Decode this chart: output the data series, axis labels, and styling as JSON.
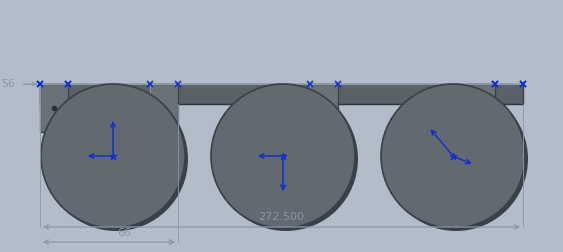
{
  "bg_color": "#b3bcc9",
  "paddle_color": "#626970",
  "paddle_edge_color": "#3a4048",
  "base_color": "#5a6168",
  "base_edge_color": "#3a4048",
  "bracket_color": "#6a7178",
  "bracket_edge_color": "#3a4048",
  "dim_color": "#8898aa",
  "arrow_color": "#1133cc",
  "dim_272_label": "272.500",
  "dim_66_label": "66",
  "dim_56_label": "56",
  "fig_w": 5.63,
  "fig_h": 2.52,
  "dpi": 100
}
